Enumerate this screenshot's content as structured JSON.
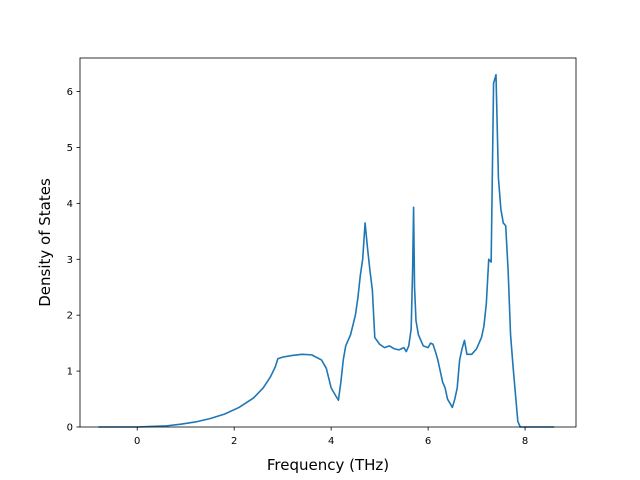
{
  "chart_data": {
    "type": "line",
    "title": "",
    "xlabel": "Frequency (THz)",
    "ylabel": "Density of States",
    "xlim": [
      -1.18,
      9.05
    ],
    "ylim": [
      0,
      6.6
    ],
    "grid": false,
    "legend": "none",
    "line_color": "#1f77b4",
    "xticks": [
      0,
      2,
      4,
      6,
      8
    ],
    "yticks": [
      0,
      1,
      2,
      3,
      4,
      5,
      6
    ],
    "series": [
      {
        "x": [
          -0.8,
          -0.5,
          -0.2,
          0.0,
          0.3,
          0.6,
          0.9,
          1.2,
          1.5,
          1.8,
          2.1,
          2.4,
          2.6,
          2.75,
          2.85,
          2.9,
          3.0,
          3.2,
          3.4,
          3.6,
          3.8,
          3.9,
          4.0,
          4.1,
          4.15,
          4.2,
          4.25,
          4.3,
          4.35,
          4.4,
          4.5,
          4.55,
          4.6,
          4.65,
          4.7,
          4.75,
          4.8,
          4.85,
          4.9,
          5.0,
          5.1,
          5.2,
          5.3,
          5.4,
          5.5,
          5.55,
          5.6,
          5.65,
          5.68,
          5.7,
          5.72,
          5.75,
          5.8,
          5.9,
          6.0,
          6.05,
          6.1,
          6.15,
          6.2,
          6.3,
          6.35,
          6.4,
          6.5,
          6.55,
          6.6,
          6.65,
          6.7,
          6.75,
          6.8,
          6.9,
          7.0,
          7.1,
          7.15,
          7.2,
          7.25,
          7.3,
          7.35,
          7.4,
          7.45,
          7.5,
          7.55,
          7.6,
          7.65,
          7.7,
          7.75,
          7.8,
          7.85,
          7.9,
          8.0,
          8.2,
          8.4,
          8.6
        ],
        "y": [
          0.0,
          0.0,
          0.0,
          0.0,
          0.01,
          0.02,
          0.05,
          0.09,
          0.15,
          0.23,
          0.35,
          0.52,
          0.7,
          0.9,
          1.08,
          1.22,
          1.25,
          1.28,
          1.3,
          1.29,
          1.2,
          1.05,
          0.7,
          0.55,
          0.48,
          0.8,
          1.2,
          1.45,
          1.55,
          1.65,
          2.0,
          2.3,
          2.7,
          3.0,
          3.65,
          3.2,
          2.8,
          2.45,
          1.6,
          1.48,
          1.42,
          1.45,
          1.4,
          1.38,
          1.42,
          1.35,
          1.45,
          1.75,
          2.8,
          3.93,
          2.5,
          1.9,
          1.65,
          1.45,
          1.42,
          1.5,
          1.48,
          1.35,
          1.2,
          0.8,
          0.7,
          0.5,
          0.35,
          0.5,
          0.7,
          1.2,
          1.4,
          1.55,
          1.3,
          1.3,
          1.4,
          1.6,
          1.8,
          2.2,
          3.0,
          2.95,
          6.15,
          6.3,
          4.45,
          3.9,
          3.65,
          3.6,
          2.8,
          1.65,
          1.1,
          0.6,
          0.1,
          0.0,
          0.0,
          0.0,
          0.0,
          0.0
        ]
      }
    ]
  }
}
